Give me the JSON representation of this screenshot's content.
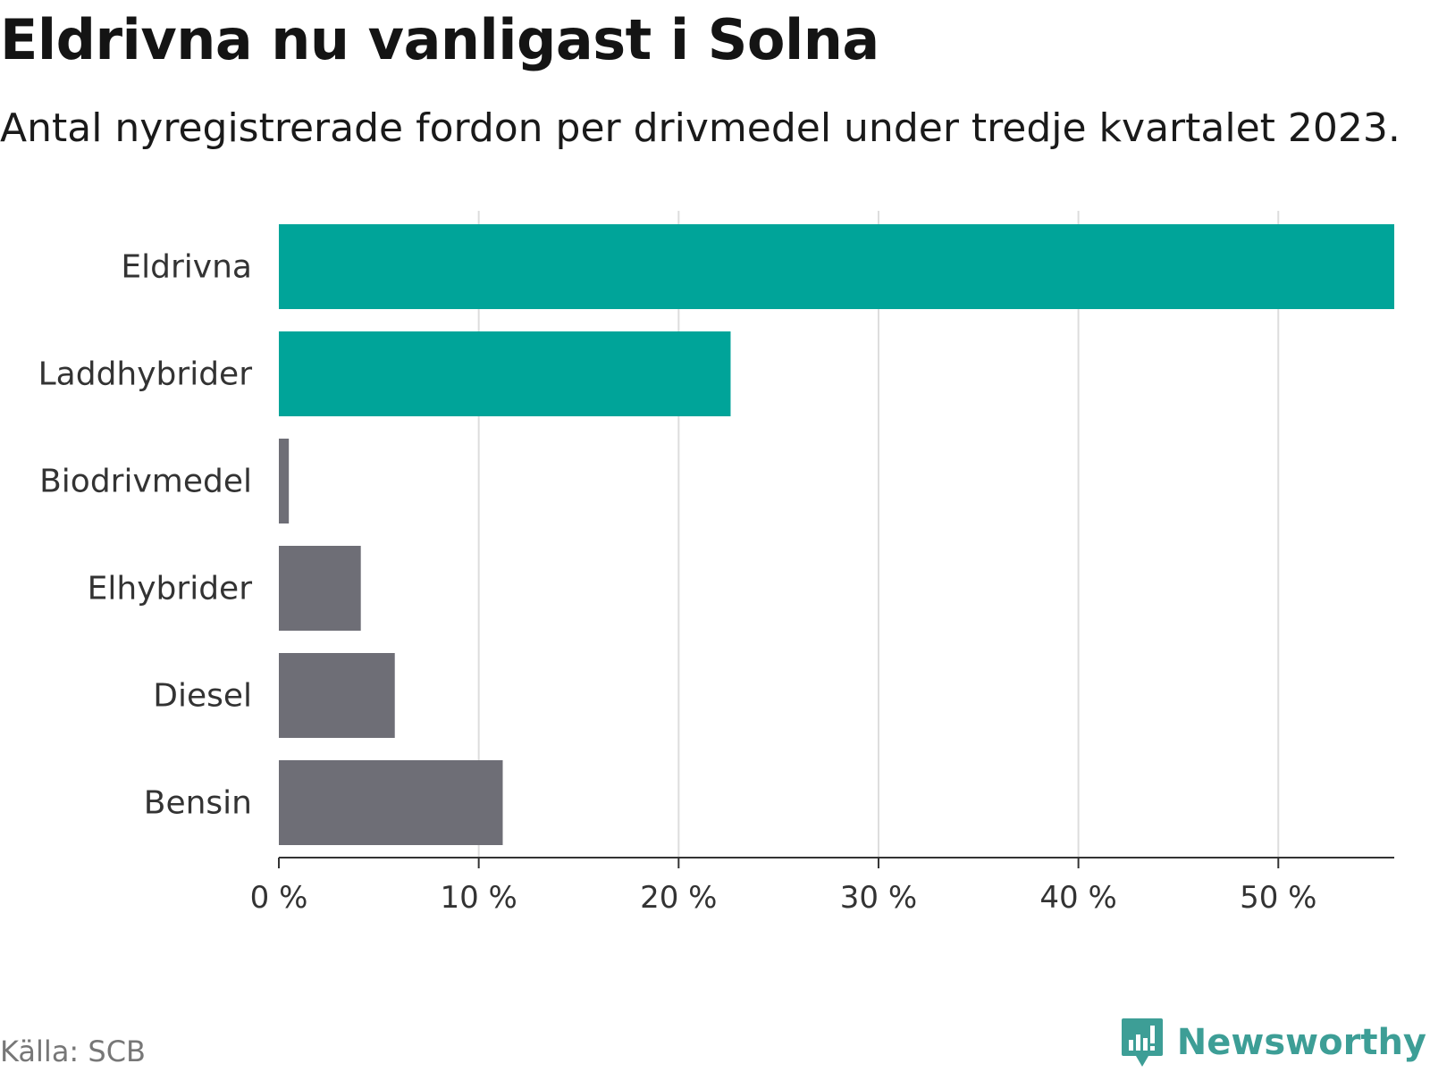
{
  "header": {
    "title": "Eldrivna nu vanligast i Solna",
    "subtitle": "Antal nyregistrerade fordon per drivmedel under tredje kvartalet 2023."
  },
  "footer": {
    "source": "Källa: SCB",
    "brand": "Newsworthy"
  },
  "colors": {
    "highlight": "#00a499",
    "default": "#6e6e76",
    "grid": "#dddddd",
    "axis": "#333333",
    "brand": "#3d9e96"
  },
  "chart_data": {
    "type": "bar",
    "orientation": "horizontal",
    "title": "Eldrivna nu vanligast i Solna",
    "subtitle": "Antal nyregistrerade fordon per drivmedel under tredje kvartalet 2023.",
    "categories": [
      "Eldrivna",
      "Laddhybrider",
      "Biodrivmedel",
      "Elhybrider",
      "Diesel",
      "Bensin"
    ],
    "values": [
      55.8,
      22.6,
      0.5,
      4.1,
      5.8,
      11.2
    ],
    "highlight": [
      true,
      true,
      false,
      false,
      false,
      false
    ],
    "xlim": [
      0,
      55.8
    ],
    "xticks": [
      0,
      10,
      20,
      30,
      40,
      50
    ],
    "xtick_labels": [
      "0 %",
      "10 %",
      "20 %",
      "30 %",
      "40 %",
      "50 %"
    ],
    "xlabel": "",
    "ylabel": "",
    "grid": true
  }
}
